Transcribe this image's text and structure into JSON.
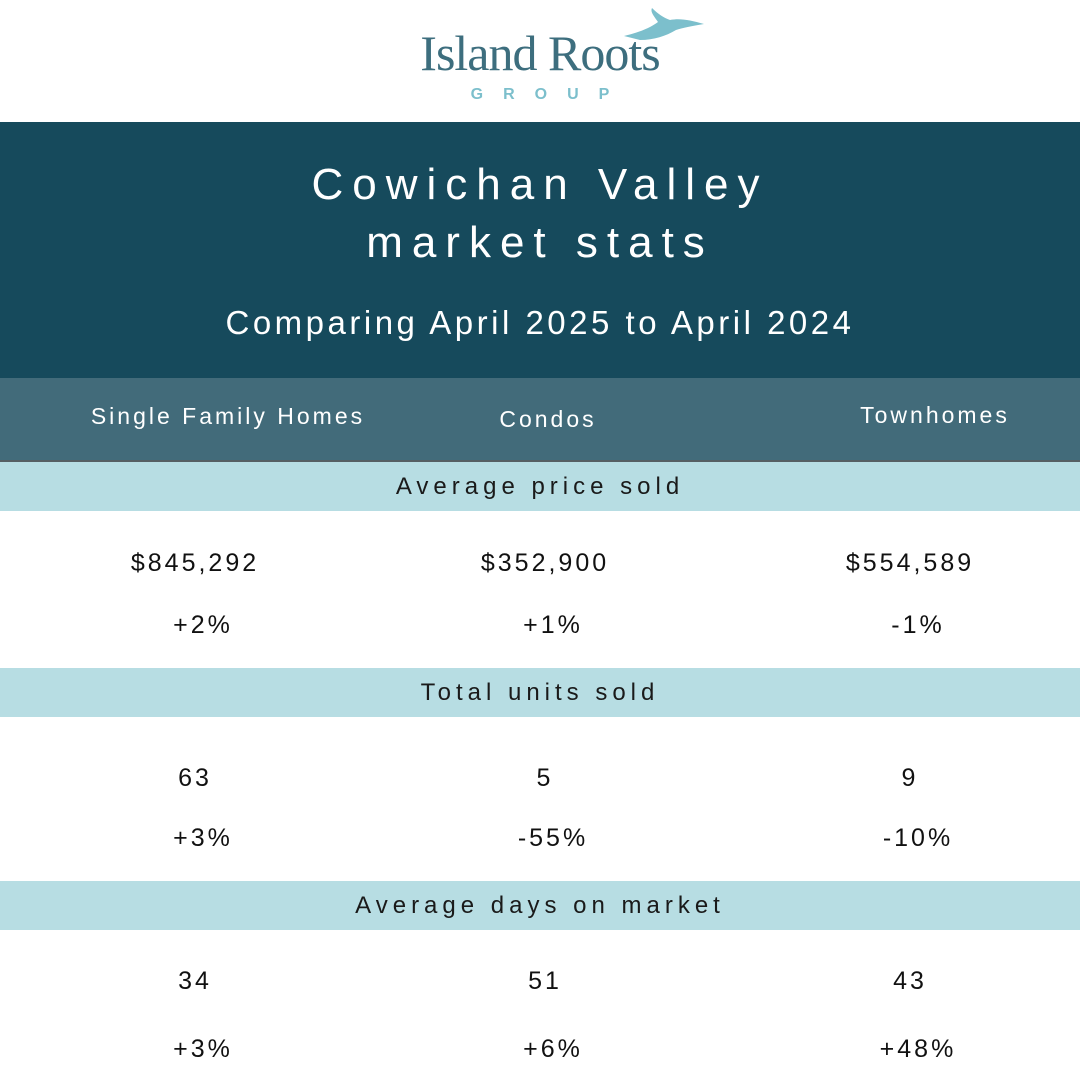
{
  "logo": {
    "name": "Island Roots",
    "group": "GROUP"
  },
  "header": {
    "title_lines": [
      "Cowichan Valley",
      "market stats"
    ],
    "subtitle": "Comparing April 2025 to April 2024"
  },
  "columns": [
    "Single Family Homes",
    "Condos",
    "Townhomes"
  ],
  "sections": [
    {
      "title": "Average price sold",
      "values": [
        "$845,292",
        "$352,900",
        "$554,589"
      ],
      "changes": [
        "+2%",
        "+1%",
        "-1%"
      ]
    },
    {
      "title": "Total units sold",
      "values": [
        "63",
        "5",
        "9"
      ],
      "changes": [
        "+3%",
        "-55%",
        "-10%"
      ]
    },
    {
      "title": "Average days on market",
      "values": [
        "34",
        "51",
        "43"
      ],
      "changes": [
        "+3%",
        "+6%",
        "+48%"
      ]
    }
  ]
}
